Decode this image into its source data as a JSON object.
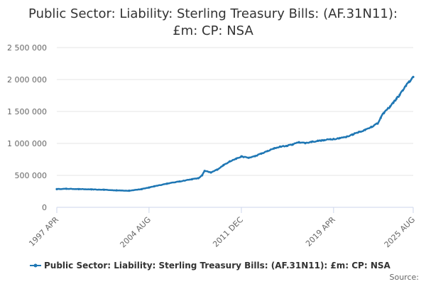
{
  "chart_data": {
    "type": "line",
    "title_lines": [
      "Public Sector: Liability: Sterling Treasury Bills: (AF.31N11):",
      "£m: CP: NSA"
    ],
    "xlabel": "",
    "ylabel": "",
    "x_ticks": [
      "1997 APR",
      "2004 AUG",
      "2011 DEC",
      "2019 APR",
      "2025 AUG"
    ],
    "x_tick_years": [
      1997.25,
      2004.58,
      2011.92,
      2019.25,
      2025.58
    ],
    "xlim": [
      1997.25,
      2025.58
    ],
    "y_ticks": [
      "0",
      "500 000",
      "1 000 000",
      "1 500 000",
      "2 000 000",
      "2 500 000"
    ],
    "y_tick_values": [
      0,
      500000,
      1000000,
      1500000,
      2000000,
      2500000
    ],
    "ylim": [
      0,
      2500000
    ],
    "grid": true,
    "legend_position": "bottom",
    "series": [
      {
        "name": "Public Sector: Liability: Sterling Treasury Bills: (AF.31N11): £m: CP: NSA",
        "color": "#1f77b4",
        "x": [
          1997.25,
          1998.0,
          1999.0,
          2000.0,
          2001.0,
          2002.0,
          2003.0,
          2004.0,
          2004.58,
          2005.0,
          2006.0,
          2007.0,
          2008.0,
          2008.5,
          2008.8,
          2009.0,
          2009.5,
          2010.0,
          2010.5,
          2011.0,
          2011.5,
          2011.92,
          2012.5,
          2013.0,
          2013.5,
          2014.0,
          2014.5,
          2015.0,
          2015.5,
          2016.0,
          2016.5,
          2017.0,
          2017.5,
          2018.0,
          2018.5,
          2019.0,
          2019.25,
          2019.75,
          2020.25,
          2020.75,
          2021.25,
          2021.75,
          2022.25,
          2022.75,
          2023.0,
          2023.25,
          2023.75,
          2024.0,
          2024.25,
          2024.5,
          2024.75,
          2025.0,
          2025.25,
          2025.58
        ],
        "values": [
          285000,
          290000,
          285000,
          280000,
          275000,
          265000,
          260000,
          285000,
          310000,
          330000,
          370000,
          405000,
          440000,
          455000,
          500000,
          570000,
          545000,
          590000,
          660000,
          720000,
          760000,
          795000,
          775000,
          800000,
          840000,
          880000,
          920000,
          950000,
          960000,
          985000,
          1020000,
          1005000,
          1025000,
          1040000,
          1050000,
          1065000,
          1070000,
          1085000,
          1100000,
          1140000,
          1180000,
          1210000,
          1260000,
          1310000,
          1400000,
          1480000,
          1580000,
          1640000,
          1700000,
          1760000,
          1830000,
          1900000,
          1960000,
          2040000
        ]
      }
    ]
  },
  "source_label": "Source:"
}
